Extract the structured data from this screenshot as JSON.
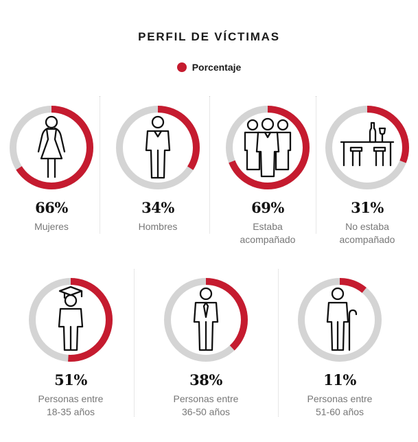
{
  "title": "PERFIL DE VÍCTIMAS",
  "legend": {
    "label": "Porcentaje",
    "color": "#c51b2f"
  },
  "colors": {
    "track": "#d4d4d4",
    "accent": "#c51b2f"
  },
  "chart_data": {
    "type": "donut",
    "unit": "%",
    "items": [
      {
        "value": 66,
        "label": "66%",
        "caption": "Mujeres",
        "icon": "woman-icon"
      },
      {
        "value": 34,
        "label": "34%",
        "caption": "Hombres",
        "icon": "man-icon"
      },
      {
        "value": 69,
        "label": "69%",
        "caption": "Estaba\nacompañado",
        "icon": "group-icon"
      },
      {
        "value": 31,
        "label": "31%",
        "caption": "No estaba\nacompañado",
        "icon": "bar-icon"
      },
      {
        "value": 51,
        "label": "51%",
        "caption": "Personas entre\n18-35 años",
        "icon": "graduate-icon"
      },
      {
        "value": 38,
        "label": "38%",
        "caption": "Personas entre\n36-50 años",
        "icon": "businessman-icon"
      },
      {
        "value": 11,
        "label": "11%",
        "caption": "Personas entre\n51-60 años",
        "icon": "elderly-icon"
      }
    ]
  }
}
